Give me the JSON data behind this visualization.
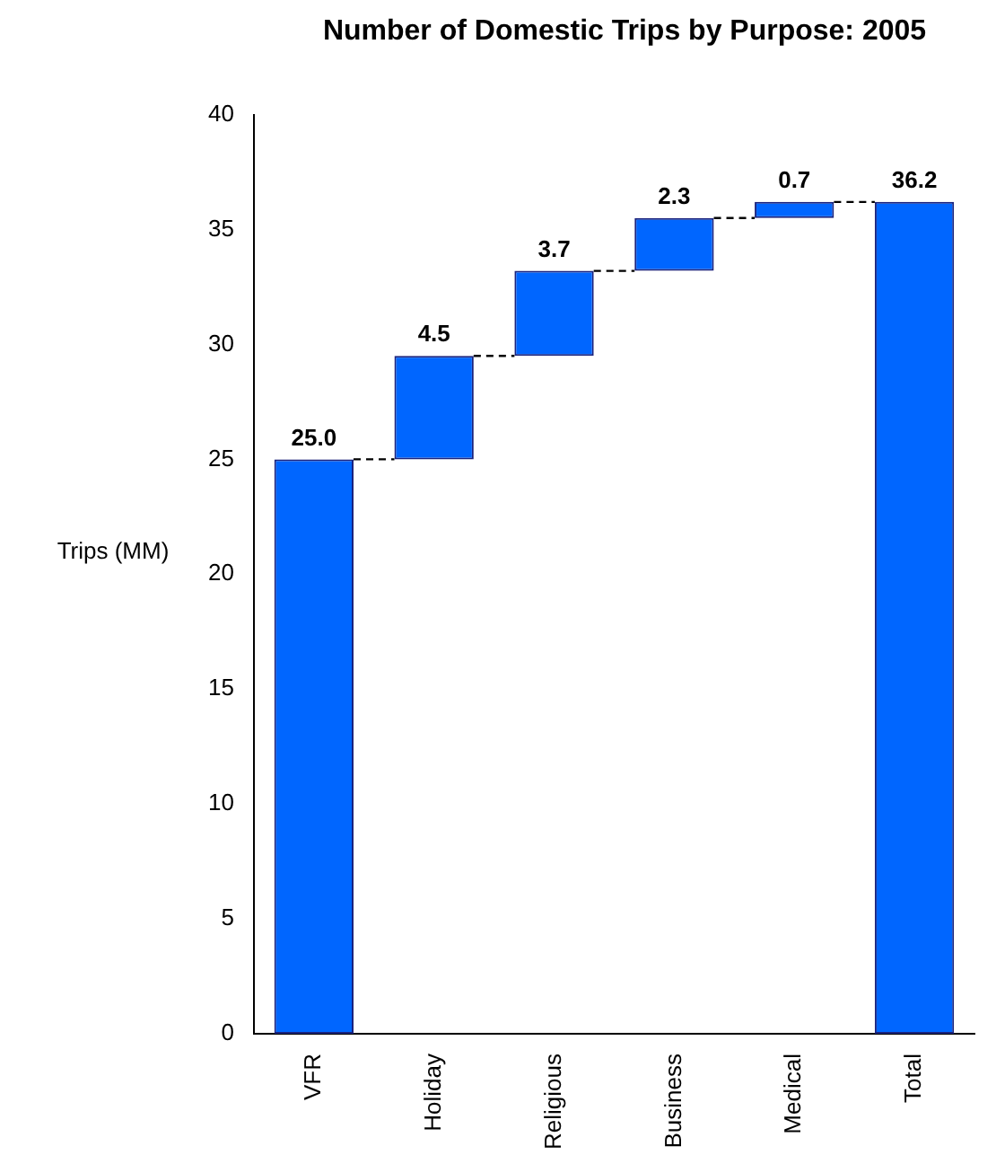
{
  "chart_data": {
    "type": "bar",
    "title": "Number of Domestic Trips by Purpose: 2005",
    "ylabel": "Trips (MM)",
    "categories": [
      "VFR",
      "Holiday",
      "Religious",
      "Business",
      "Medical",
      "Total"
    ],
    "values": [
      25.0,
      4.5,
      3.7,
      2.3,
      0.7,
      36.2
    ],
    "base": [
      0,
      25.0,
      29.5,
      33.2,
      35.5,
      0
    ],
    "value_labels": [
      "25.0",
      "4.5",
      "3.7",
      "2.3",
      "0.7",
      "36.2"
    ],
    "color": "#0066ff",
    "ylim": [
      0,
      40
    ],
    "yticks": [
      0,
      5,
      10,
      15,
      20,
      25,
      30,
      35,
      40
    ],
    "grid": false,
    "legend": false
  }
}
